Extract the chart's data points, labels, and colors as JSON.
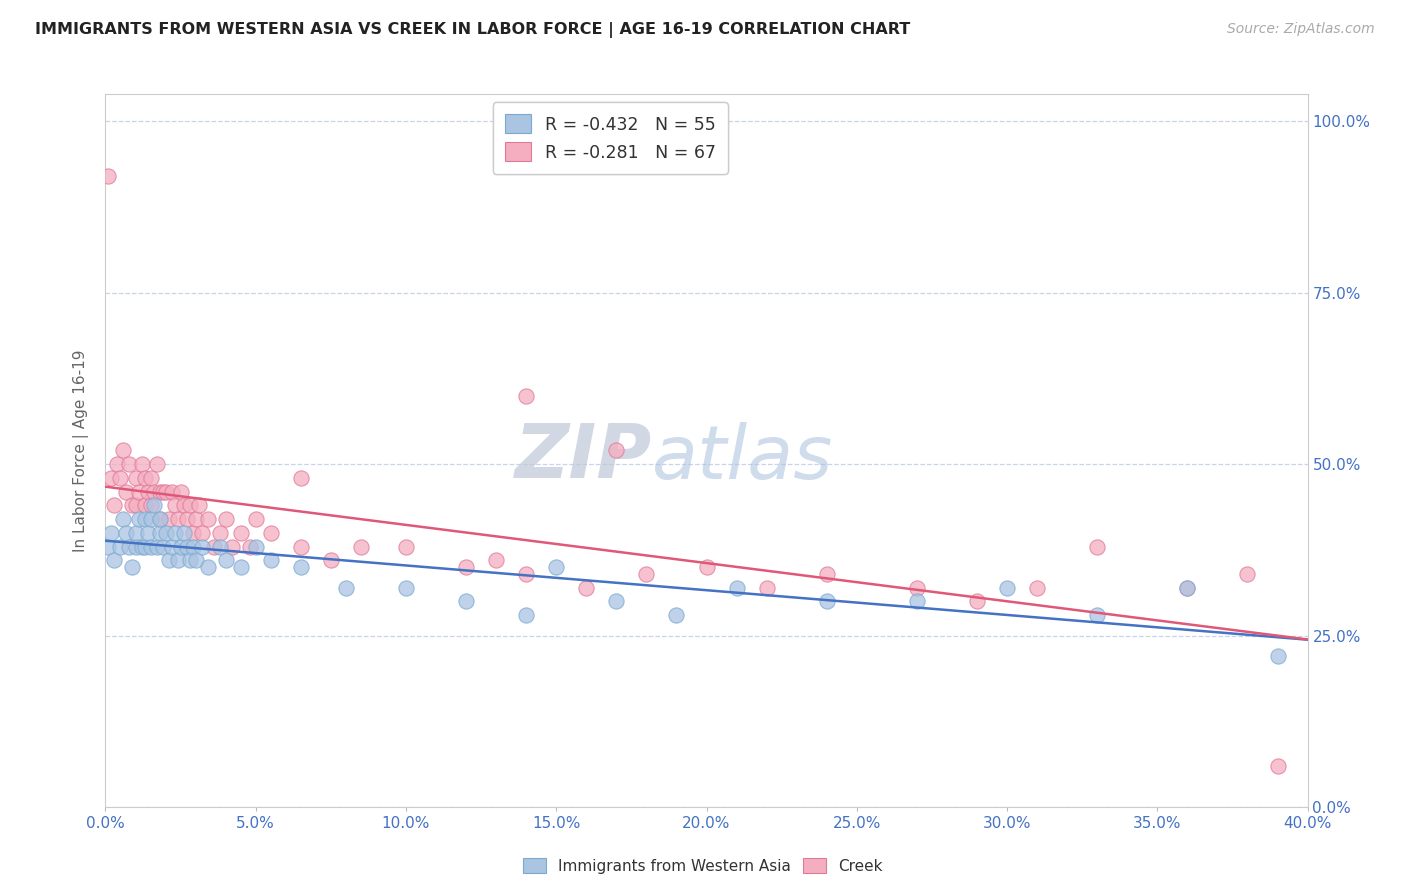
{
  "title": "IMMIGRANTS FROM WESTERN ASIA VS CREEK IN LABOR FORCE | AGE 16-19 CORRELATION CHART",
  "source_text": "Source: ZipAtlas.com",
  "ylabel": "In Labor Force | Age 16-19",
  "xlim": [
    0.0,
    0.4
  ],
  "ylim": [
    0.0,
    1.04
  ],
  "xticks": [
    0.0,
    0.05,
    0.1,
    0.15,
    0.2,
    0.25,
    0.3,
    0.35,
    0.4
  ],
  "yticks": [
    0.0,
    0.25,
    0.5,
    0.75,
    1.0
  ],
  "ytick_labels_right": [
    "0.0%",
    "25.0%",
    "50.0%",
    "75.0%",
    "100.0%"
  ],
  "legend_blue_label": "R = -0.432   N = 55",
  "legend_pink_label": "R = -0.281   N = 67",
  "legend_series_blue": "Immigrants from Western Asia",
  "legend_series_pink": "Creek",
  "blue_color": "#aac4e2",
  "blue_edge_color": "#7aaad0",
  "pink_color": "#f4aec0",
  "pink_edge_color": "#e07898",
  "blue_line_color": "#4472c4",
  "pink_line_color": "#e05878",
  "background_color": "#ffffff",
  "grid_color": "#c8d4ec",
  "blue_scatter_x": [
    0.001,
    0.002,
    0.003,
    0.005,
    0.006,
    0.007,
    0.008,
    0.009,
    0.01,
    0.01,
    0.011,
    0.012,
    0.013,
    0.013,
    0.014,
    0.015,
    0.015,
    0.016,
    0.017,
    0.018,
    0.018,
    0.019,
    0.02,
    0.021,
    0.022,
    0.023,
    0.024,
    0.025,
    0.026,
    0.027,
    0.028,
    0.029,
    0.03,
    0.032,
    0.034,
    0.038,
    0.04,
    0.045,
    0.05,
    0.055,
    0.065,
    0.08,
    0.1,
    0.12,
    0.14,
    0.15,
    0.17,
    0.19,
    0.21,
    0.24,
    0.27,
    0.3,
    0.33,
    0.36,
    0.39
  ],
  "blue_scatter_y": [
    0.38,
    0.4,
    0.36,
    0.38,
    0.42,
    0.4,
    0.38,
    0.35,
    0.4,
    0.38,
    0.42,
    0.38,
    0.42,
    0.38,
    0.4,
    0.42,
    0.38,
    0.44,
    0.38,
    0.4,
    0.42,
    0.38,
    0.4,
    0.36,
    0.38,
    0.4,
    0.36,
    0.38,
    0.4,
    0.38,
    0.36,
    0.38,
    0.36,
    0.38,
    0.35,
    0.38,
    0.36,
    0.35,
    0.38,
    0.36,
    0.35,
    0.32,
    0.32,
    0.3,
    0.28,
    0.35,
    0.3,
    0.28,
    0.32,
    0.3,
    0.3,
    0.32,
    0.28,
    0.32,
    0.22
  ],
  "pink_scatter_x": [
    0.001,
    0.002,
    0.003,
    0.004,
    0.005,
    0.006,
    0.007,
    0.008,
    0.009,
    0.01,
    0.01,
    0.011,
    0.012,
    0.013,
    0.013,
    0.014,
    0.015,
    0.015,
    0.016,
    0.017,
    0.018,
    0.018,
    0.019,
    0.02,
    0.021,
    0.022,
    0.023,
    0.024,
    0.025,
    0.026,
    0.027,
    0.028,
    0.029,
    0.03,
    0.031,
    0.032,
    0.034,
    0.036,
    0.038,
    0.04,
    0.042,
    0.045,
    0.048,
    0.05,
    0.055,
    0.065,
    0.075,
    0.085,
    0.1,
    0.12,
    0.13,
    0.14,
    0.16,
    0.18,
    0.2,
    0.22,
    0.24,
    0.27,
    0.29,
    0.31,
    0.33,
    0.36,
    0.38,
    0.14,
    0.17,
    0.065,
    0.39
  ],
  "pink_scatter_y": [
    0.92,
    0.48,
    0.44,
    0.5,
    0.48,
    0.52,
    0.46,
    0.5,
    0.44,
    0.48,
    0.44,
    0.46,
    0.5,
    0.48,
    0.44,
    0.46,
    0.48,
    0.44,
    0.46,
    0.5,
    0.46,
    0.42,
    0.46,
    0.46,
    0.42,
    0.46,
    0.44,
    0.42,
    0.46,
    0.44,
    0.42,
    0.44,
    0.4,
    0.42,
    0.44,
    0.4,
    0.42,
    0.38,
    0.4,
    0.42,
    0.38,
    0.4,
    0.38,
    0.42,
    0.4,
    0.38,
    0.36,
    0.38,
    0.38,
    0.35,
    0.36,
    0.34,
    0.32,
    0.34,
    0.35,
    0.32,
    0.34,
    0.32,
    0.3,
    0.32,
    0.38,
    0.32,
    0.34,
    0.6,
    0.52,
    0.48,
    0.06
  ]
}
